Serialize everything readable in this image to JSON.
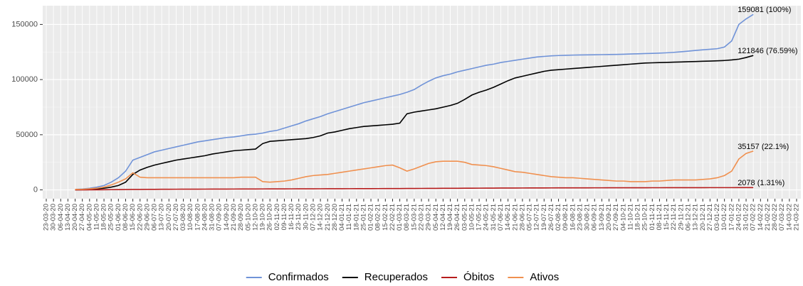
{
  "chart_data": {
    "type": "line",
    "categories": [
      "23-03-20",
      "30-03-20",
      "06-04-20",
      "13-04-20",
      "20-04-20",
      "27-04-20",
      "04-05-20",
      "11-05-20",
      "18-05-20",
      "25-05-20",
      "01-06-20",
      "08-06-20",
      "15-06-20",
      "22-06-20",
      "29-06-20",
      "06-07-20",
      "13-07-20",
      "20-07-20",
      "27-07-20",
      "03-08-20",
      "10-08-20",
      "17-08-20",
      "24-08-20",
      "31-08-20",
      "07-09-20",
      "14-09-20",
      "21-09-20",
      "28-09-20",
      "05-10-20",
      "12-10-20",
      "19-10-20",
      "26-10-20",
      "02-11-20",
      "09-11-20",
      "16-11-20",
      "23-11-20",
      "30-11-20",
      "07-12-20",
      "14-12-20",
      "21-12-20",
      "28-12-20",
      "04-01-21",
      "11-01-21",
      "18-01-21",
      "25-01-21",
      "01-02-21",
      "08-02-21",
      "15-02-21",
      "22-02-21",
      "01-03-21",
      "08-03-21",
      "15-03-21",
      "22-03-21",
      "29-03-21",
      "05-04-21",
      "12-04-21",
      "19-04-21",
      "26-04-21",
      "03-05-21",
      "10-05-21",
      "17-05-21",
      "24-05-21",
      "31-05-21",
      "07-06-21",
      "14-06-21",
      "21-06-21",
      "28-06-21",
      "05-07-21",
      "12-07-21",
      "19-07-21",
      "26-07-21",
      "02-08-21",
      "09-08-21",
      "16-08-21",
      "23-08-21",
      "30-08-21",
      "06-09-21",
      "13-09-21",
      "20-09-21",
      "27-09-21",
      "04-10-21",
      "11-10-21",
      "18-10-21",
      "25-10-21",
      "01-11-21",
      "08-11-21",
      "15-11-21",
      "22-11-21",
      "29-11-21",
      "06-12-21",
      "13-12-21",
      "20-12-21",
      "27-12-21",
      "03-01-22",
      "10-01-22",
      "17-01-22",
      "24-01-22",
      "31-01-22",
      "07-02-22",
      "14-02-22",
      "21-02-22",
      "28-02-22",
      "07-03-22",
      "14-03-22",
      "21-03-22"
    ],
    "series": [
      {
        "name": "Confirmados",
        "color": "#7093d8",
        "end_label": "159081 (100%)",
        "values": [
          null,
          null,
          null,
          null,
          500,
          800,
          1500,
          2500,
          4000,
          7000,
          11000,
          17000,
          27000,
          29500,
          32000,
          34500,
          36000,
          37500,
          39000,
          40500,
          42000,
          43500,
          44500,
          45500,
          46500,
          47500,
          48000,
          49000,
          50000,
          50500,
          51500,
          53000,
          54000,
          56000,
          58000,
          60000,
          62500,
          64500,
          66500,
          69000,
          71000,
          73000,
          75000,
          77000,
          79000,
          80500,
          82000,
          83500,
          85000,
          86500,
          88500,
          91000,
          95000,
          98500,
          101500,
          103500,
          105000,
          107000,
          108500,
          110000,
          111500,
          113000,
          114000,
          115500,
          116500,
          117500,
          118500,
          119500,
          120500,
          121000,
          121500,
          121800,
          122000,
          122200,
          122300,
          122400,
          122500,
          122600,
          122700,
          122800,
          123000,
          123200,
          123400,
          123600,
          123800,
          124000,
          124300,
          124700,
          125200,
          125800,
          126400,
          127000,
          127500,
          128000,
          129500,
          135000,
          150000,
          155000,
          159081,
          null,
          null,
          null,
          null,
          null,
          null
        ]
      },
      {
        "name": "Recuperados",
        "color": "#000000",
        "end_label": "121846 (76.59%)",
        "values": [
          null,
          null,
          null,
          null,
          0,
          200,
          500,
          1000,
          1500,
          2500,
          4000,
          7000,
          14000,
          18000,
          20500,
          22500,
          24000,
          25500,
          27000,
          28000,
          29000,
          30000,
          31000,
          32500,
          33500,
          34500,
          35500,
          36000,
          36500,
          37000,
          42000,
          44000,
          44500,
          45000,
          45500,
          46000,
          46500,
          47500,
          49000,
          51500,
          52500,
          54000,
          55500,
          56500,
          57500,
          58000,
          58500,
          59000,
          59500,
          60500,
          69000,
          70500,
          71500,
          72500,
          73500,
          75000,
          76500,
          78500,
          82000,
          86000,
          88500,
          90500,
          93000,
          96000,
          99000,
          101500,
          103000,
          104500,
          106000,
          107500,
          108500,
          109000,
          109500,
          110000,
          110500,
          111000,
          111500,
          112000,
          112500,
          113000,
          113500,
          114000,
          114500,
          115000,
          115200,
          115400,
          115600,
          115800,
          116000,
          116200,
          116400,
          116600,
          116800,
          117000,
          117300,
          117800,
          118500,
          120000,
          121846,
          null,
          null,
          null,
          null,
          null,
          null
        ]
      },
      {
        "name": "Óbitos",
        "color": "#b71c1c",
        "end_label": "2078 (1.31%)",
        "values": [
          null,
          null,
          null,
          null,
          10,
          30,
          60,
          100,
          150,
          200,
          260,
          320,
          380,
          430,
          470,
          510,
          540,
          570,
          600,
          630,
          650,
          670,
          690,
          710,
          730,
          750,
          770,
          790,
          810,
          830,
          850,
          870,
          890,
          910,
          930,
          950,
          970,
          990,
          1010,
          1030,
          1050,
          1070,
          1090,
          1110,
          1130,
          1150,
          1170,
          1190,
          1210,
          1240,
          1270,
          1300,
          1330,
          1360,
          1390,
          1420,
          1450,
          1480,
          1510,
          1540,
          1570,
          1600,
          1630,
          1660,
          1690,
          1710,
          1730,
          1750,
          1770,
          1790,
          1810,
          1830,
          1850,
          1860,
          1870,
          1880,
          1890,
          1900,
          1910,
          1920,
          1930,
          1940,
          1950,
          1960,
          1970,
          1980,
          1990,
          2000,
          2010,
          2020,
          2030,
          2040,
          2045,
          2050,
          2055,
          2060,
          2065,
          2070,
          2078,
          null,
          null,
          null,
          null,
          null,
          null
        ]
      },
      {
        "name": "Ativos",
        "color": "#f0904f",
        "end_label": "35157 (22.1%)",
        "values": [
          null,
          null,
          null,
          null,
          500,
          600,
          1000,
          1500,
          2500,
          4500,
          7000,
          10000,
          15500,
          11500,
          11000,
          11000,
          11000,
          11000,
          11000,
          11000,
          11000,
          11000,
          11000,
          11000,
          11000,
          11000,
          11000,
          11500,
          11500,
          11500,
          7500,
          7000,
          7500,
          8000,
          9000,
          10500,
          12000,
          13000,
          13500,
          14000,
          15000,
          16000,
          17000,
          18000,
          19000,
          20000,
          21000,
          22000,
          22500,
          20000,
          17000,
          19000,
          21500,
          24000,
          25500,
          26000,
          26000,
          26000,
          25000,
          23000,
          22500,
          22000,
          21000,
          19500,
          18000,
          16500,
          16000,
          15000,
          14000,
          13000,
          12000,
          11500,
          11000,
          11000,
          10500,
          10000,
          9500,
          9000,
          8500,
          8000,
          8000,
          7500,
          7500,
          7500,
          8000,
          8000,
          8500,
          9000,
          9000,
          9000,
          9000,
          9500,
          10000,
          11000,
          13000,
          17000,
          28000,
          33000,
          35157,
          null,
          null,
          null,
          null,
          null,
          null
        ]
      }
    ],
    "ylim": [
      -8000,
      167000
    ],
    "yticks": [
      0,
      50000,
      100000,
      150000
    ],
    "grid": true,
    "legend": "bottom"
  }
}
